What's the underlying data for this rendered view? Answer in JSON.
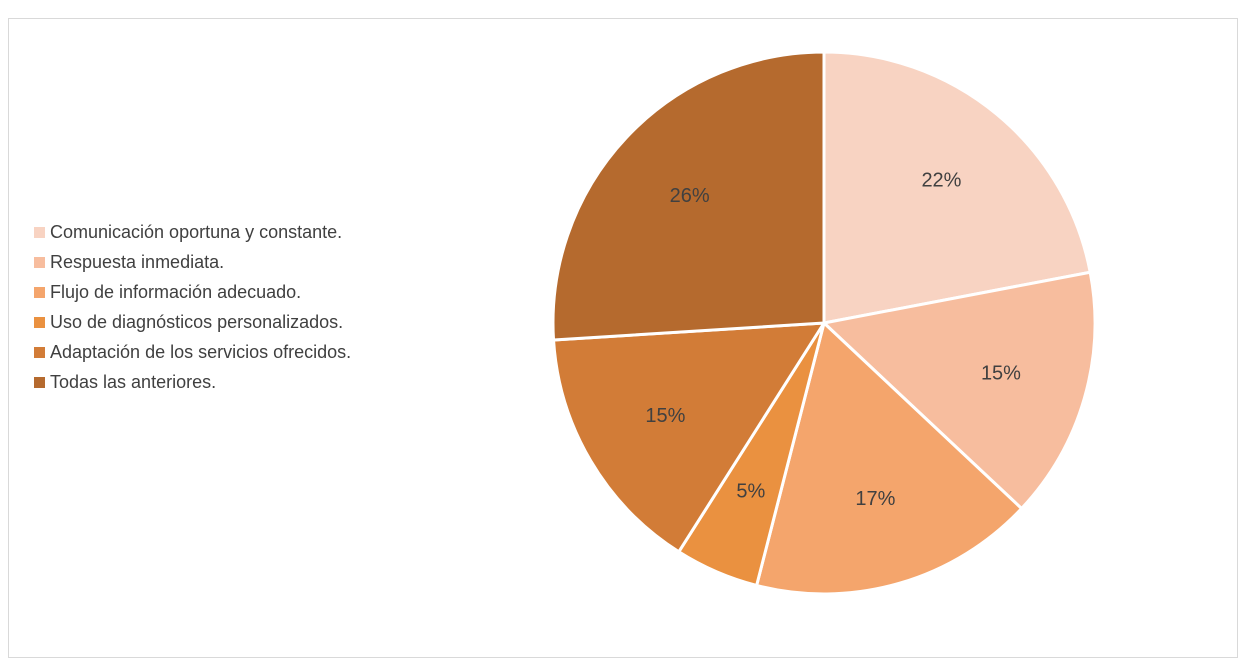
{
  "chart_data": {
    "type": "pie",
    "title": "",
    "legend_position": "left",
    "categories": [
      "Comunicación oportuna y constante.",
      "Respuesta inmediata.",
      "Flujo de información adecuado.",
      "Uso de diagnósticos personalizados.",
      "Adaptación de los servicios ofrecidos.",
      "Todas las anteriores."
    ],
    "values": [
      22,
      15,
      17,
      5,
      15,
      26
    ],
    "labels": [
      "22%",
      "15%",
      "17%",
      "5%",
      "15%",
      "26%"
    ],
    "colors": [
      "#f8d3c2",
      "#f7bd9e",
      "#f4a56c",
      "#ea9140",
      "#d27c37",
      "#b56a2e"
    ]
  }
}
